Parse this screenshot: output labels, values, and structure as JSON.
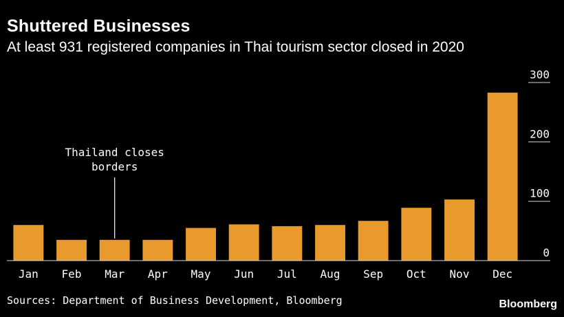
{
  "header": {
    "title": "Shuttered Businesses",
    "subtitle": "At least 931 registered companies in Thai tourism sector closed in 2020"
  },
  "footer": {
    "source": "Sources: Department of Business Development, Bloomberg",
    "brand": "Bloomberg"
  },
  "colors": {
    "bar": "#e89a2c",
    "background": "#000000",
    "text": "#ffffff",
    "axis": "#d8d8d8"
  },
  "chart_data": {
    "type": "bar",
    "title": "Shuttered Businesses",
    "subtitle": "At least 931 registered companies in Thai tourism sector closed in 2020",
    "categories": [
      "Jan",
      "Feb",
      "Mar",
      "Apr",
      "May",
      "Jun",
      "Jul",
      "Aug",
      "Sep",
      "Oct",
      "Nov",
      "Dec"
    ],
    "values": [
      60,
      35,
      35,
      35,
      55,
      61,
      58,
      60,
      67,
      89,
      103,
      283
    ],
    "ylim": [
      0,
      300
    ],
    "yticks": [
      0,
      100,
      200,
      300
    ],
    "y_axis_position": "right",
    "grid": false,
    "annotation": {
      "category": "Mar",
      "lines": [
        "Thailand closes",
        "borders"
      ]
    }
  }
}
